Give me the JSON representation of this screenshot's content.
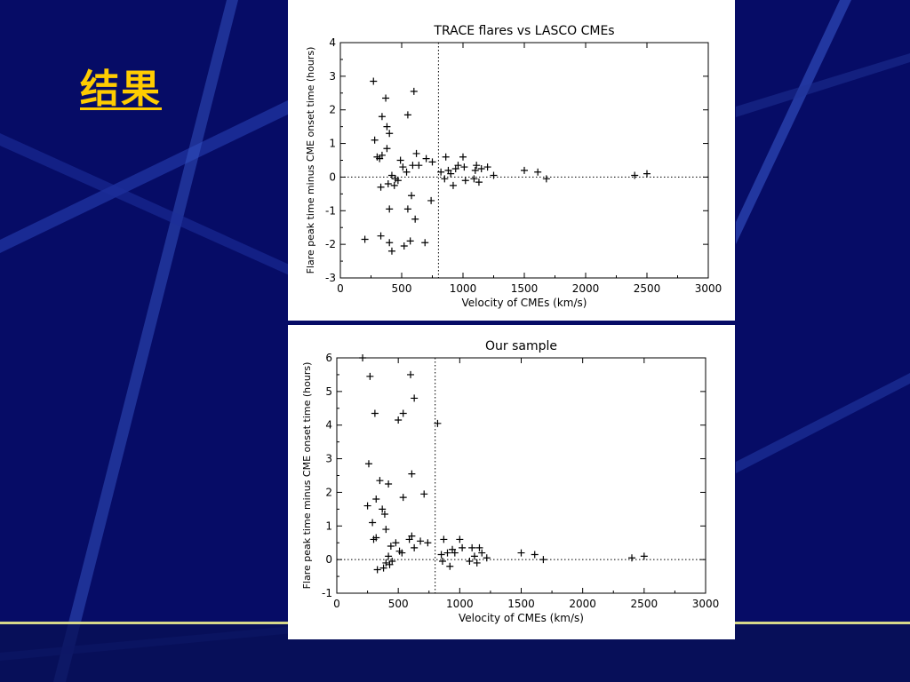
{
  "slide": {
    "title": "结果",
    "colors": {
      "background": "#060c66",
      "title": "#ffcc00",
      "stripe": "#4a6fd0",
      "accent_line": "#d6d88a"
    }
  },
  "chart_data": [
    {
      "type": "scatter",
      "title": "TRACE flares vs LASCO CMEs",
      "xlabel": "Velocity of CMEs (km/s)",
      "ylabel": "Flare peak time minus CME onset time (hours)",
      "xlim": [
        0,
        3000
      ],
      "ylim": [
        -3,
        4
      ],
      "xticks": [
        0,
        500,
        1000,
        1500,
        2000,
        2500,
        3000
      ],
      "yticks": [
        -3,
        -2,
        -1,
        0,
        1,
        2,
        3,
        4
      ],
      "marker": "+",
      "grid": false,
      "reference_lines": {
        "horizontal_y": 0,
        "vertical_x": 800,
        "style": "dotted"
      },
      "points": [
        [
          270,
          2.85
        ],
        [
          280,
          1.1
        ],
        [
          300,
          0.6
        ],
        [
          320,
          0.55
        ],
        [
          340,
          1.8
        ],
        [
          330,
          -0.3
        ],
        [
          330,
          -1.75
        ],
        [
          340,
          0.65
        ],
        [
          370,
          2.35
        ],
        [
          380,
          1.5
        ],
        [
          390,
          -0.2
        ],
        [
          380,
          0.85
        ],
        [
          400,
          1.3
        ],
        [
          400,
          -0.95
        ],
        [
          400,
          -1.95
        ],
        [
          420,
          0.05
        ],
        [
          420,
          -2.2
        ],
        [
          440,
          -0.25
        ],
        [
          450,
          -0.05
        ],
        [
          470,
          -0.1
        ],
        [
          490,
          0.5
        ],
        [
          510,
          0.3
        ],
        [
          520,
          -2.05
        ],
        [
          540,
          0.15
        ],
        [
          550,
          1.85
        ],
        [
          550,
          -0.95
        ],
        [
          570,
          -1.9
        ],
        [
          580,
          -0.55
        ],
        [
          590,
          0.35
        ],
        [
          600,
          2.55
        ],
        [
          610,
          -1.25
        ],
        [
          620,
          0.7
        ],
        [
          640,
          0.35
        ],
        [
          690,
          -1.95
        ],
        [
          700,
          0.55
        ],
        [
          740,
          -0.7
        ],
        [
          750,
          0.45
        ],
        [
          200,
          -1.85
        ],
        [
          820,
          0.15
        ],
        [
          850,
          -0.05
        ],
        [
          860,
          0.6
        ],
        [
          880,
          0.2
        ],
        [
          900,
          0.1
        ],
        [
          920,
          -0.25
        ],
        [
          940,
          0.25
        ],
        [
          960,
          0.35
        ],
        [
          1000,
          0.6
        ],
        [
          1010,
          0.3
        ],
        [
          1020,
          -0.1
        ],
        [
          1090,
          -0.05
        ],
        [
          1100,
          0.2
        ],
        [
          1110,
          0.35
        ],
        [
          1130,
          -0.15
        ],
        [
          1150,
          0.25
        ],
        [
          1200,
          0.3
        ],
        [
          1250,
          0.05
        ],
        [
          1500,
          0.2
        ],
        [
          1610,
          0.15
        ],
        [
          1680,
          -0.05
        ],
        [
          2400,
          0.05
        ],
        [
          2500,
          0.1
        ]
      ]
    },
    {
      "type": "scatter",
      "title": "Our sample",
      "xlabel": "Velocity of CMEs (km/s)",
      "ylabel": "Flare peak time minus CME onset time (hours)",
      "xlim": [
        0,
        3000
      ],
      "ylim": [
        -1,
        6
      ],
      "xticks": [
        0,
        500,
        1000,
        1500,
        2000,
        2500,
        3000
      ],
      "yticks": [
        -1,
        0,
        1,
        2,
        3,
        4,
        5,
        6
      ],
      "marker": "+",
      "grid": false,
      "reference_lines": {
        "horizontal_y": 0,
        "vertical_x": 800,
        "style": "dotted"
      },
      "points": [
        [
          210,
          6.0
        ],
        [
          270,
          5.45
        ],
        [
          310,
          4.35
        ],
        [
          500,
          4.15
        ],
        [
          540,
          4.35
        ],
        [
          600,
          5.5
        ],
        [
          630,
          4.8
        ],
        [
          820,
          4.05
        ],
        [
          260,
          2.85
        ],
        [
          350,
          2.35
        ],
        [
          420,
          2.25
        ],
        [
          610,
          2.55
        ],
        [
          710,
          1.95
        ],
        [
          540,
          1.85
        ],
        [
          250,
          1.6
        ],
        [
          320,
          1.8
        ],
        [
          370,
          1.5
        ],
        [
          390,
          1.35
        ],
        [
          290,
          1.1
        ],
        [
          400,
          0.9
        ],
        [
          300,
          0.6
        ],
        [
          320,
          0.65
        ],
        [
          440,
          0.4
        ],
        [
          480,
          0.5
        ],
        [
          510,
          0.25
        ],
        [
          530,
          0.2
        ],
        [
          590,
          0.6
        ],
        [
          610,
          0.7
        ],
        [
          630,
          0.35
        ],
        [
          680,
          0.55
        ],
        [
          740,
          0.5
        ],
        [
          330,
          -0.3
        ],
        [
          380,
          -0.25
        ],
        [
          400,
          -0.1
        ],
        [
          420,
          0.1
        ],
        [
          430,
          -0.15
        ],
        [
          450,
          -0.05
        ],
        [
          850,
          0.15
        ],
        [
          860,
          -0.05
        ],
        [
          870,
          0.6
        ],
        [
          900,
          0.2
        ],
        [
          920,
          -0.2
        ],
        [
          940,
          0.3
        ],
        [
          960,
          0.2
        ],
        [
          1000,
          0.6
        ],
        [
          1020,
          0.35
        ],
        [
          1080,
          -0.05
        ],
        [
          1100,
          0.35
        ],
        [
          1120,
          0.1
        ],
        [
          1140,
          -0.1
        ],
        [
          1160,
          0.35
        ],
        [
          1180,
          0.2
        ],
        [
          1220,
          0.05
        ],
        [
          1500,
          0.2
        ],
        [
          1610,
          0.15
        ],
        [
          1680,
          0.0
        ],
        [
          2400,
          0.05
        ],
        [
          2500,
          0.1
        ]
      ]
    }
  ]
}
